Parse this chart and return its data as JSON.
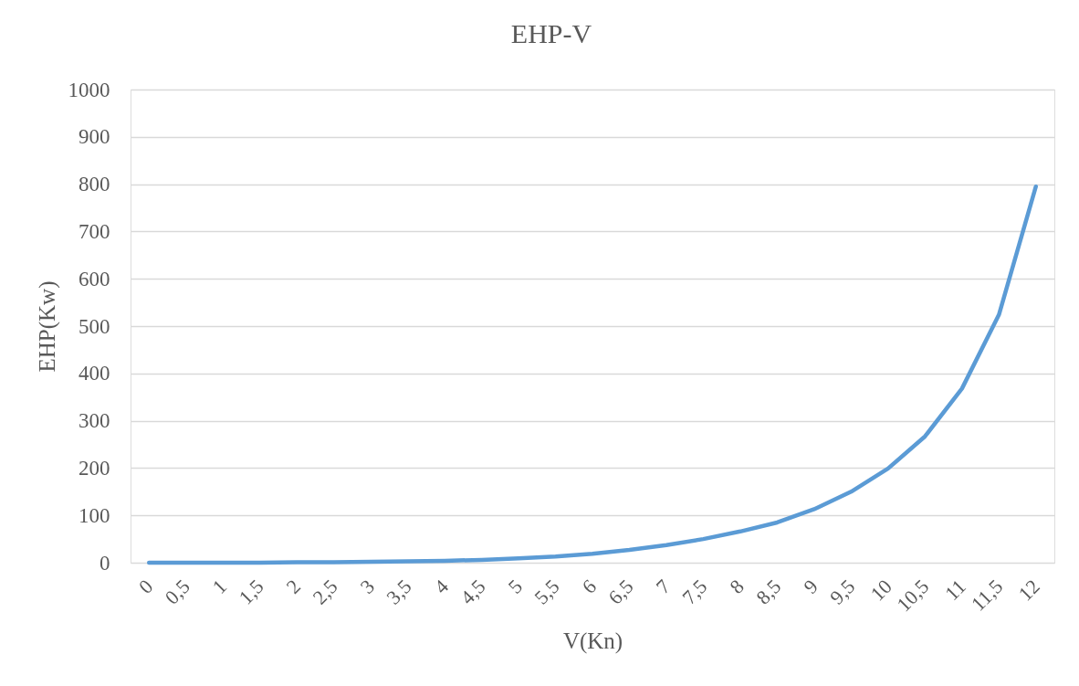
{
  "chart_data": {
    "type": "line",
    "title": "EHP-V",
    "xlabel": "V(Kn)",
    "ylabel": "EHP(Kw)",
    "categories": [
      "0",
      "0,5",
      "1",
      "1,5",
      "2",
      "2,5",
      "3",
      "3,5",
      "4",
      "4,5",
      "5",
      "5,5",
      "6",
      "6,5",
      "7",
      "7,5",
      "8",
      "8,5",
      "9",
      "9,5",
      "10",
      "10,5",
      "11",
      "11,5",
      "12"
    ],
    "series": [
      {
        "color": "#5b9bd5",
        "values": [
          0,
          0,
          0,
          0,
          1,
          1,
          2,
          3,
          4,
          6,
          9,
          13,
          19,
          27,
          37,
          50,
          66,
          85,
          113,
          150,
          199,
          267,
          368,
          524,
          795
        ]
      }
    ],
    "ylim": [
      0,
      1000
    ],
    "yticks": [
      0,
      100,
      200,
      300,
      400,
      500,
      600,
      700,
      800,
      900,
      1000
    ],
    "grid": "y"
  }
}
